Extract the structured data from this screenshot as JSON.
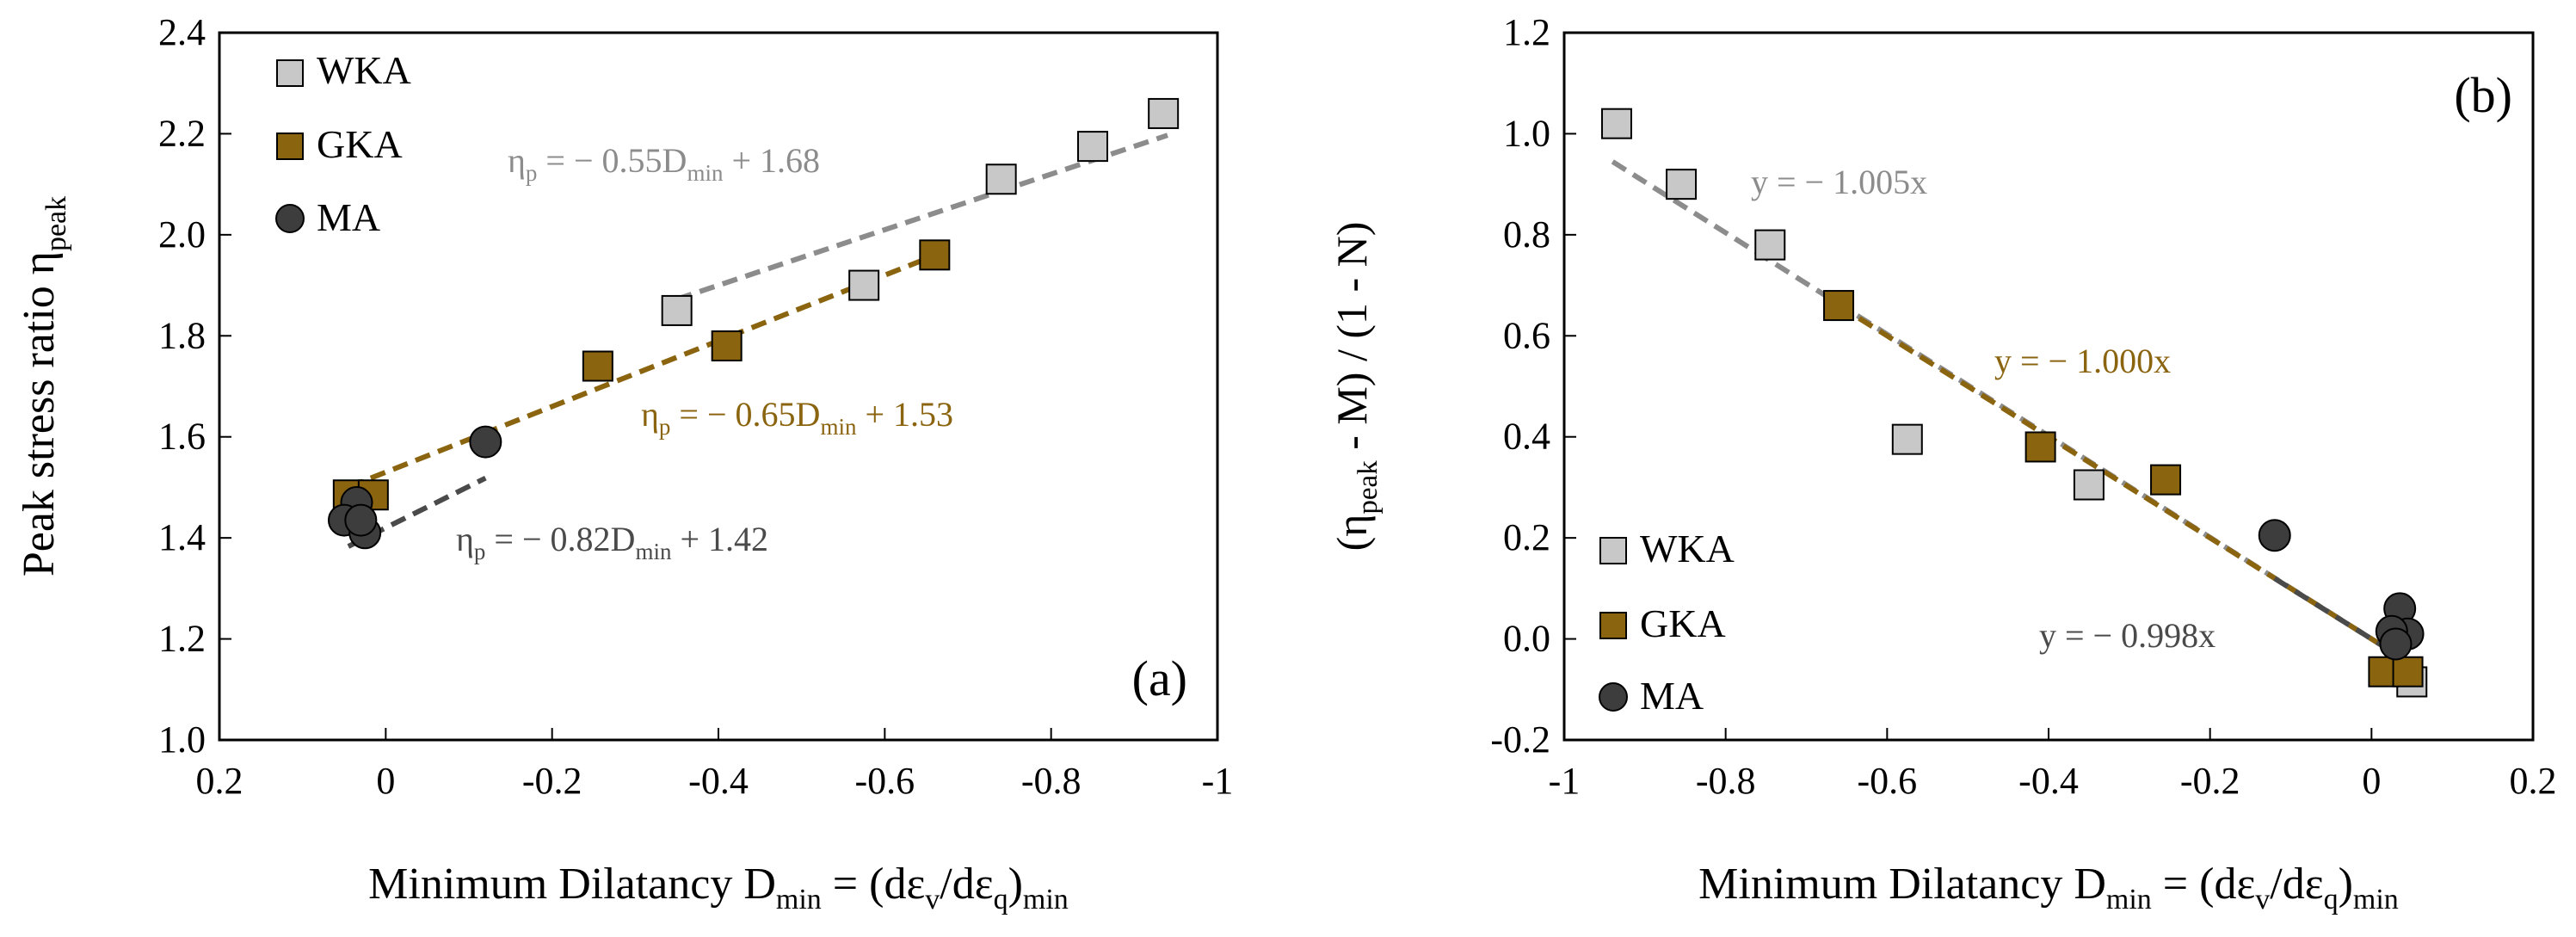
{
  "colors": {
    "wka_fill": "#c8c8c8",
    "gka_fill": "#8b6410",
    "ma_fill": "#3d3d3d",
    "wka_line": "#8c8c8c",
    "gka_line": "#8b6410",
    "ma_line": "#4a4a4a",
    "axis": "#000000"
  },
  "chart_data": [
    {
      "type": "scatter",
      "panel_label": "(a)",
      "ylabel_main": "Peak stress ratio η",
      "ylabel_sub": "peak",
      "xlabel_main": "Minimum Dilatancy D",
      "xlabel_sub1": "min",
      "xlabel_mid": " = (dε",
      "xlabel_sub2": "v",
      "xlabel_mid2": "/dε",
      "xlabel_sub3": "q",
      "xlabel_end": ")",
      "xlabel_sub4": "min",
      "x_reversed": true,
      "xlim": [
        0.2,
        -1
      ],
      "ylim": [
        1.0,
        2.4
      ],
      "xticks": [
        0.2,
        0,
        -0.2,
        -0.4,
        -0.6,
        -0.8,
        -1
      ],
      "xtick_labels": [
        "0.2",
        "0",
        "-0.2",
        "-0.4",
        "-0.6",
        "-0.8",
        "-1"
      ],
      "yticks": [
        1.0,
        1.2,
        1.4,
        1.6,
        1.8,
        2.0,
        2.2,
        2.4
      ],
      "ytick_labels": [
        "1.0",
        "1.2",
        "1.4",
        "1.6",
        "1.8",
        "2.0",
        "2.2",
        "2.4"
      ],
      "legend": [
        {
          "label": "WKA",
          "marker": "square",
          "color_key": "wka_fill"
        },
        {
          "label": "GKA",
          "marker": "square",
          "color_key": "gka_fill"
        },
        {
          "label": "MA",
          "marker": "circle",
          "color_key": "ma_fill"
        }
      ],
      "series": [
        {
          "name": "WKA",
          "marker": "square",
          "color_key": "wka_fill",
          "x": [
            -0.35,
            -0.575,
            -0.74,
            -0.85,
            -0.935
          ],
          "y": [
            1.85,
            1.9,
            2.11,
            2.175,
            2.24
          ]
        },
        {
          "name": "GKA",
          "marker": "square",
          "color_key": "gka_fill",
          "x": [
            0.045,
            0.015,
            -0.255,
            -0.41,
            -0.66
          ],
          "y": [
            1.485,
            1.485,
            1.74,
            1.78,
            1.96
          ]
        },
        {
          "name": "MA",
          "marker": "circle",
          "color_key": "ma_fill",
          "x": [
            0.035,
            0.05,
            0.025,
            0.03,
            -0.12
          ],
          "y": [
            1.47,
            1.435,
            1.41,
            1.435,
            1.59
          ]
        }
      ],
      "fits": [
        {
          "name": "WKA fit",
          "color_key": "wka_line",
          "x_range": [
            -0.35,
            -0.94
          ],
          "slope": -0.55,
          "intercept": 1.68,
          "label_pre": "η",
          "label_sub1": "p",
          "label_mid": " = − 0.55D",
          "label_sub2": "min",
          "label_post": " + 1.68"
        },
        {
          "name": "GKA fit",
          "color_key": "gka_line",
          "x_range": [
            0.045,
            -0.66
          ],
          "slope": -0.65,
          "intercept": 1.53,
          "label_pre": "η",
          "label_sub1": "p",
          "label_mid": "  = − 0.65D",
          "label_sub2": "min",
          "label_post": " + 1.53"
        },
        {
          "name": "MA fit",
          "color_key": "ma_line",
          "x_range": [
            0.045,
            -0.12
          ],
          "slope": -0.82,
          "intercept": 1.42,
          "label_pre": "η",
          "label_sub1": "p",
          "label_mid": "  = − 0.82D",
          "label_sub2": "min",
          "label_post": " + 1.42"
        }
      ]
    },
    {
      "type": "scatter",
      "panel_label": "(b)",
      "ylabel_pre": "(η",
      "ylabel_sub": "peak",
      "ylabel_post": " - M) / (1 - N)",
      "xlabel_main": "Minimum Dilatancy D",
      "xlabel_sub1": "min",
      "xlabel_mid": " = (dε",
      "xlabel_sub2": "v",
      "xlabel_mid2": "/dε",
      "xlabel_sub3": "q",
      "xlabel_end": ")",
      "xlabel_sub4": "min",
      "xlim": [
        -1,
        0.2
      ],
      "ylim": [
        -0.2,
        1.2
      ],
      "xticks": [
        -1,
        -0.8,
        -0.6,
        -0.4,
        -0.2,
        0,
        0.2
      ],
      "xtick_labels": [
        "-1",
        "-0.8",
        "-0.6",
        "-0.4",
        "-0.2",
        "0",
        "0.2"
      ],
      "yticks": [
        -0.2,
        0.0,
        0.2,
        0.4,
        0.6,
        0.8,
        1.0,
        1.2
      ],
      "ytick_labels": [
        "-0.2",
        "0.0",
        "0.2",
        "0.4",
        "0.6",
        "0.8",
        "1.0",
        "1.2"
      ],
      "legend": [
        {
          "label": "WKA",
          "marker": "square",
          "color_key": "wka_fill"
        },
        {
          "label": "GKA",
          "marker": "square",
          "color_key": "gka_fill"
        },
        {
          "label": "MA",
          "marker": "circle",
          "color_key": "ma_fill"
        }
      ],
      "series": [
        {
          "name": "WKA",
          "marker": "square",
          "color_key": "wka_fill",
          "x": [
            -0.935,
            -0.855,
            -0.745,
            -0.575,
            -0.35,
            0.05
          ],
          "y": [
            1.02,
            0.9,
            0.78,
            0.395,
            0.305,
            -0.085
          ]
        },
        {
          "name": "GKA",
          "marker": "square",
          "color_key": "gka_fill",
          "x": [
            -0.66,
            -0.41,
            -0.255,
            0.015,
            0.045
          ],
          "y": [
            0.66,
            0.38,
            0.315,
            -0.065,
            -0.065
          ]
        },
        {
          "name": "MA",
          "marker": "circle",
          "color_key": "ma_fill",
          "x": [
            -0.12,
            0.035,
            0.045,
            0.025,
            0.03
          ],
          "y": [
            0.205,
            0.06,
            0.01,
            0.015,
            -0.01
          ]
        }
      ],
      "fits": [
        {
          "name": "WKA fit",
          "color_key": "wka_line",
          "x_range": [
            -0.94,
            0.05
          ],
          "slope": -1.005,
          "intercept": 0,
          "label": "y = − 1.005x"
        },
        {
          "name": "GKA fit",
          "color_key": "gka_line",
          "x_range": [
            -0.66,
            0.045
          ],
          "slope": -1.0,
          "intercept": 0,
          "label": "y = − 1.000x"
        },
        {
          "name": "MA fit",
          "color_key": "ma_line",
          "x_range": [
            -0.12,
            0.045
          ],
          "slope": -0.998,
          "intercept": 0,
          "label": "y = − 0.998x"
        }
      ]
    }
  ]
}
